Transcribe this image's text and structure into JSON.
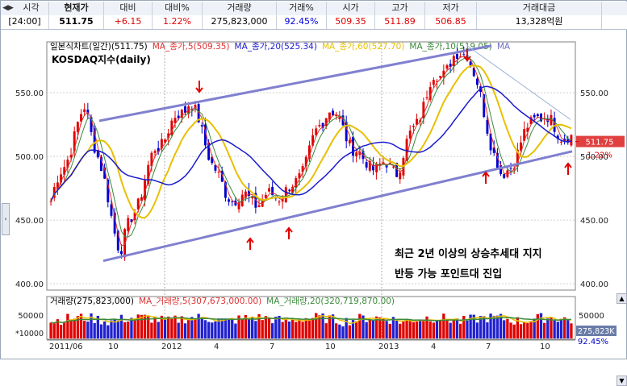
{
  "header": {
    "nav_arrows": "◀▶",
    "columns": [
      {
        "label": "시각",
        "value": "[24:00]",
        "color": "#000000"
      },
      {
        "label": "현재가",
        "value": "511.75",
        "color": "#000000"
      },
      {
        "label": "대비",
        "value": "+6.15",
        "color": "#e00000"
      },
      {
        "label": "대비%",
        "value": "1.22%",
        "color": "#e00000"
      },
      {
        "label": "거래량",
        "value": "275,823,000",
        "color": "#000000"
      },
      {
        "label": "거래%",
        "value": "92.45%",
        "color": "#0000e0"
      },
      {
        "label": "시가",
        "value": "509.35",
        "color": "#e00000"
      },
      {
        "label": "고가",
        "value": "511.89",
        "color": "#e00000"
      },
      {
        "label": "저가",
        "value": "506.85",
        "color": "#e00000"
      },
      {
        "label": "거래대금",
        "value": "13,328억원",
        "color": "#000000"
      }
    ]
  },
  "price_panel": {
    "legend": [
      {
        "text": "일본식차트(일간)(511.75)",
        "color": "#000000"
      },
      {
        "text": "MA_종가,5(509.35)",
        "color": "#e03030"
      },
      {
        "text": "MA_종가,20(525.34)",
        "color": "#1a1ad0"
      },
      {
        "text": "MA_종가,60(527.70)",
        "color": "#e8c000"
      },
      {
        "text": "MA_종가,10(519.05)",
        "color": "#3a8a3a"
      },
      {
        "text": "MA",
        "color": "#7070c0"
      }
    ],
    "title": "KOSDAQ지수(daily)",
    "y_ticks_left": [
      "550.00",
      "500.00",
      "450.00",
      "400.00"
    ],
    "y_ticks_right": [
      "550.00",
      "500.00",
      "450.00",
      "400.00"
    ],
    "price_tag": "511.75",
    "change_tag": "1.22%",
    "annotation_line1": "최근 2년 이상의 상승추세대 지지",
    "annotation_line2": "반등 가능 포인트대 진입"
  },
  "volume_panel": {
    "legend": [
      {
        "text": "거래량(275,823,000)",
        "color": "#000000"
      },
      {
        "text": "MA_거래량,5(307,673,000.00)",
        "color": "#e03030"
      },
      {
        "text": "MA_거래량,20(320,719,870.00)",
        "color": "#3a8a3a"
      }
    ],
    "y_tick": "50000",
    "y_tick_right": "50000",
    "unit": "*10000",
    "vol_tag": "275,823K",
    "pct_tag": "92.45%"
  },
  "x_axis": {
    "labels": [
      "2011/06",
      "10",
      "2012",
      "4",
      "7",
      "10",
      "2013",
      "4",
      "7",
      "10"
    ]
  },
  "chart_data": {
    "type": "line",
    "title": "KOSDAQ지수(daily)",
    "ylim": [
      395,
      590
    ],
    "x": [
      "2011/06",
      "2011/08",
      "2011/10",
      "2011/12",
      "2012/02",
      "2012/04",
      "2012/06",
      "2012/08",
      "2012/10",
      "2012/12",
      "2013/02",
      "2013/04",
      "2013/06",
      "2013/08",
      "2013/10",
      "2013/12"
    ],
    "series": [
      {
        "name": "일본식차트(일간)",
        "values": [
          465,
          540,
          425,
          505,
          545,
          470,
          465,
          475,
          540,
          495,
          490,
          560,
          585,
          480,
          535,
          512
        ]
      },
      {
        "name": "MA_종가,20",
        "values": [
          505,
          515,
          470,
          500,
          535,
          500,
          470,
          470,
          525,
          500,
          490,
          545,
          565,
          510,
          525,
          525
        ]
      }
    ],
    "colors": {
      "candle_up": "#e00000",
      "candle_down": "#0000d0",
      "ma5": "#e03030",
      "ma20": "#1a1ad0",
      "ma60": "#e8c000",
      "ma10": "#3a8a3a",
      "trend": "#8080d0"
    }
  }
}
